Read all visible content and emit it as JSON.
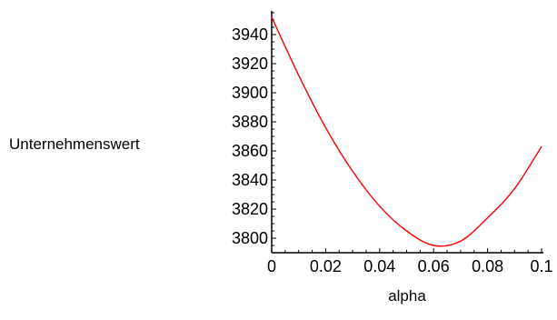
{
  "chart_data": {
    "type": "line",
    "title": "",
    "xlabel": "alpha",
    "ylabel": "Unternehmenswert",
    "xlim": [
      0,
      0.1
    ],
    "ylim": [
      3790,
      3955
    ],
    "x_ticks": [
      0,
      0.02,
      0.04,
      0.06,
      0.08,
      0.1
    ],
    "x_tick_labels": [
      "0",
      "0.02",
      "0.04",
      "0.06",
      "0.08",
      "0.1"
    ],
    "y_ticks": [
      3800,
      3820,
      3840,
      3860,
      3880,
      3900,
      3920,
      3940
    ],
    "y_tick_labels": [
      "3800",
      "3820",
      "3840",
      "3860",
      "3880",
      "3900",
      "3920",
      "3940"
    ],
    "grid": false,
    "legend": "none",
    "series": [
      {
        "color": "#ff0000",
        "x": [
          0,
          0.01,
          0.02,
          0.03,
          0.04,
          0.05,
          0.06,
          0.07,
          0.08,
          0.09,
          0.1
        ],
        "y": [
          3952,
          3912,
          3876,
          3846,
          3822,
          3805,
          3795,
          3798,
          3814,
          3834,
          3863
        ]
      }
    ]
  }
}
